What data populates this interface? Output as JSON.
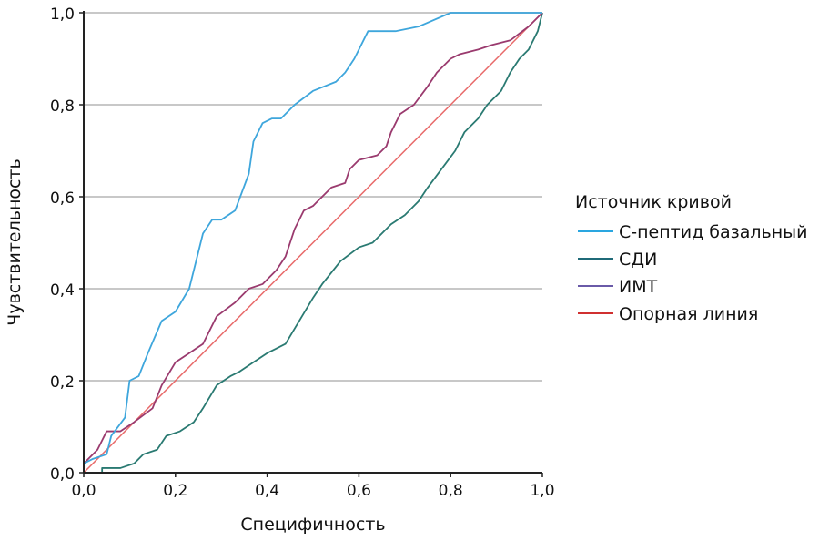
{
  "chart_data": {
    "type": "line",
    "title": "",
    "xlabel": "Специфичность",
    "ylabel": "Чувствительность",
    "xlim": [
      0,
      1
    ],
    "ylim": [
      0,
      1
    ],
    "grid": "horizontal",
    "xticks": [
      "0,0",
      "0,2",
      "0,4",
      "0,6",
      "0,8",
      "1,0"
    ],
    "yticks": [
      "0,0",
      "0,2",
      "0,4",
      "0,6",
      "0,8",
      "1,0"
    ],
    "tick_values": [
      0,
      0.2,
      0.4,
      0.6,
      0.8,
      1.0
    ],
    "legend": {
      "title": "Источник кривой",
      "placement": "right"
    },
    "series": [
      {
        "name": "С-пептид базальный",
        "color": "#3ea6dc",
        "legend_color": "#2aa6e0",
        "points": [
          [
            0,
            0
          ],
          [
            0,
            0.02
          ],
          [
            0.02,
            0.03
          ],
          [
            0.05,
            0.04
          ],
          [
            0.06,
            0.08
          ],
          [
            0.09,
            0.12
          ],
          [
            0.1,
            0.2
          ],
          [
            0.12,
            0.21
          ],
          [
            0.14,
            0.26
          ],
          [
            0.17,
            0.33
          ],
          [
            0.2,
            0.35
          ],
          [
            0.23,
            0.4
          ],
          [
            0.26,
            0.52
          ],
          [
            0.28,
            0.55
          ],
          [
            0.3,
            0.55
          ],
          [
            0.33,
            0.57
          ],
          [
            0.36,
            0.65
          ],
          [
            0.37,
            0.72
          ],
          [
            0.39,
            0.76
          ],
          [
            0.41,
            0.77
          ],
          [
            0.43,
            0.77
          ],
          [
            0.46,
            0.8
          ],
          [
            0.5,
            0.83
          ],
          [
            0.55,
            0.85
          ],
          [
            0.57,
            0.87
          ],
          [
            0.59,
            0.9
          ],
          [
            0.61,
            0.94
          ],
          [
            0.62,
            0.96
          ],
          [
            0.68,
            0.96
          ],
          [
            0.73,
            0.97
          ],
          [
            0.8,
            1.0
          ],
          [
            1,
            1
          ]
        ]
      },
      {
        "name": "СДИ",
        "color": "#2a7a72",
        "legend_color": "#1f6a78",
        "points": [
          [
            0.04,
            0
          ],
          [
            0.04,
            0.01
          ],
          [
            0.08,
            0.01
          ],
          [
            0.11,
            0.02
          ],
          [
            0.13,
            0.04
          ],
          [
            0.16,
            0.05
          ],
          [
            0.18,
            0.08
          ],
          [
            0.21,
            0.09
          ],
          [
            0.24,
            0.11
          ],
          [
            0.26,
            0.14
          ],
          [
            0.29,
            0.19
          ],
          [
            0.32,
            0.21
          ],
          [
            0.34,
            0.22
          ],
          [
            0.37,
            0.24
          ],
          [
            0.4,
            0.26
          ],
          [
            0.42,
            0.27
          ],
          [
            0.44,
            0.28
          ],
          [
            0.47,
            0.33
          ],
          [
            0.5,
            0.38
          ],
          [
            0.52,
            0.41
          ],
          [
            0.56,
            0.46
          ],
          [
            0.6,
            0.49
          ],
          [
            0.63,
            0.5
          ],
          [
            0.67,
            0.54
          ],
          [
            0.7,
            0.56
          ],
          [
            0.73,
            0.59
          ],
          [
            0.75,
            0.62
          ],
          [
            0.78,
            0.66
          ],
          [
            0.81,
            0.7
          ],
          [
            0.83,
            0.74
          ],
          [
            0.86,
            0.77
          ],
          [
            0.88,
            0.8
          ],
          [
            0.91,
            0.83
          ],
          [
            0.93,
            0.87
          ],
          [
            0.95,
            0.9
          ],
          [
            0.97,
            0.92
          ],
          [
            0.99,
            0.96
          ],
          [
            1,
            1
          ]
        ]
      },
      {
        "name": "ИМТ",
        "color": "#9a3a6e",
        "legend_color": "#6a5aa8",
        "points": [
          [
            0,
            0
          ],
          [
            0,
            0.02
          ],
          [
            0.01,
            0.03
          ],
          [
            0.03,
            0.05
          ],
          [
            0.04,
            0.07
          ],
          [
            0.05,
            0.09
          ],
          [
            0.08,
            0.09
          ],
          [
            0.11,
            0.11
          ],
          [
            0.15,
            0.14
          ],
          [
            0.17,
            0.19
          ],
          [
            0.2,
            0.24
          ],
          [
            0.23,
            0.26
          ],
          [
            0.26,
            0.28
          ],
          [
            0.29,
            0.34
          ],
          [
            0.33,
            0.37
          ],
          [
            0.36,
            0.4
          ],
          [
            0.39,
            0.41
          ],
          [
            0.4,
            0.42
          ],
          [
            0.42,
            0.44
          ],
          [
            0.44,
            0.47
          ],
          [
            0.46,
            0.53
          ],
          [
            0.48,
            0.57
          ],
          [
            0.5,
            0.58
          ],
          [
            0.51,
            0.59
          ],
          [
            0.54,
            0.62
          ],
          [
            0.57,
            0.63
          ],
          [
            0.58,
            0.66
          ],
          [
            0.6,
            0.68
          ],
          [
            0.64,
            0.69
          ],
          [
            0.66,
            0.71
          ],
          [
            0.67,
            0.74
          ],
          [
            0.69,
            0.78
          ],
          [
            0.72,
            0.8
          ],
          [
            0.75,
            0.84
          ],
          [
            0.77,
            0.87
          ],
          [
            0.8,
            0.9
          ],
          [
            0.82,
            0.91
          ],
          [
            0.86,
            0.92
          ],
          [
            0.89,
            0.93
          ],
          [
            0.93,
            0.94
          ],
          [
            0.97,
            0.97
          ],
          [
            1,
            1
          ]
        ]
      },
      {
        "name": "Опорная линия",
        "color": "#e86a6a",
        "legend_color": "#d03030",
        "points": [
          [
            0,
            0
          ],
          [
            1,
            1
          ]
        ]
      }
    ]
  }
}
